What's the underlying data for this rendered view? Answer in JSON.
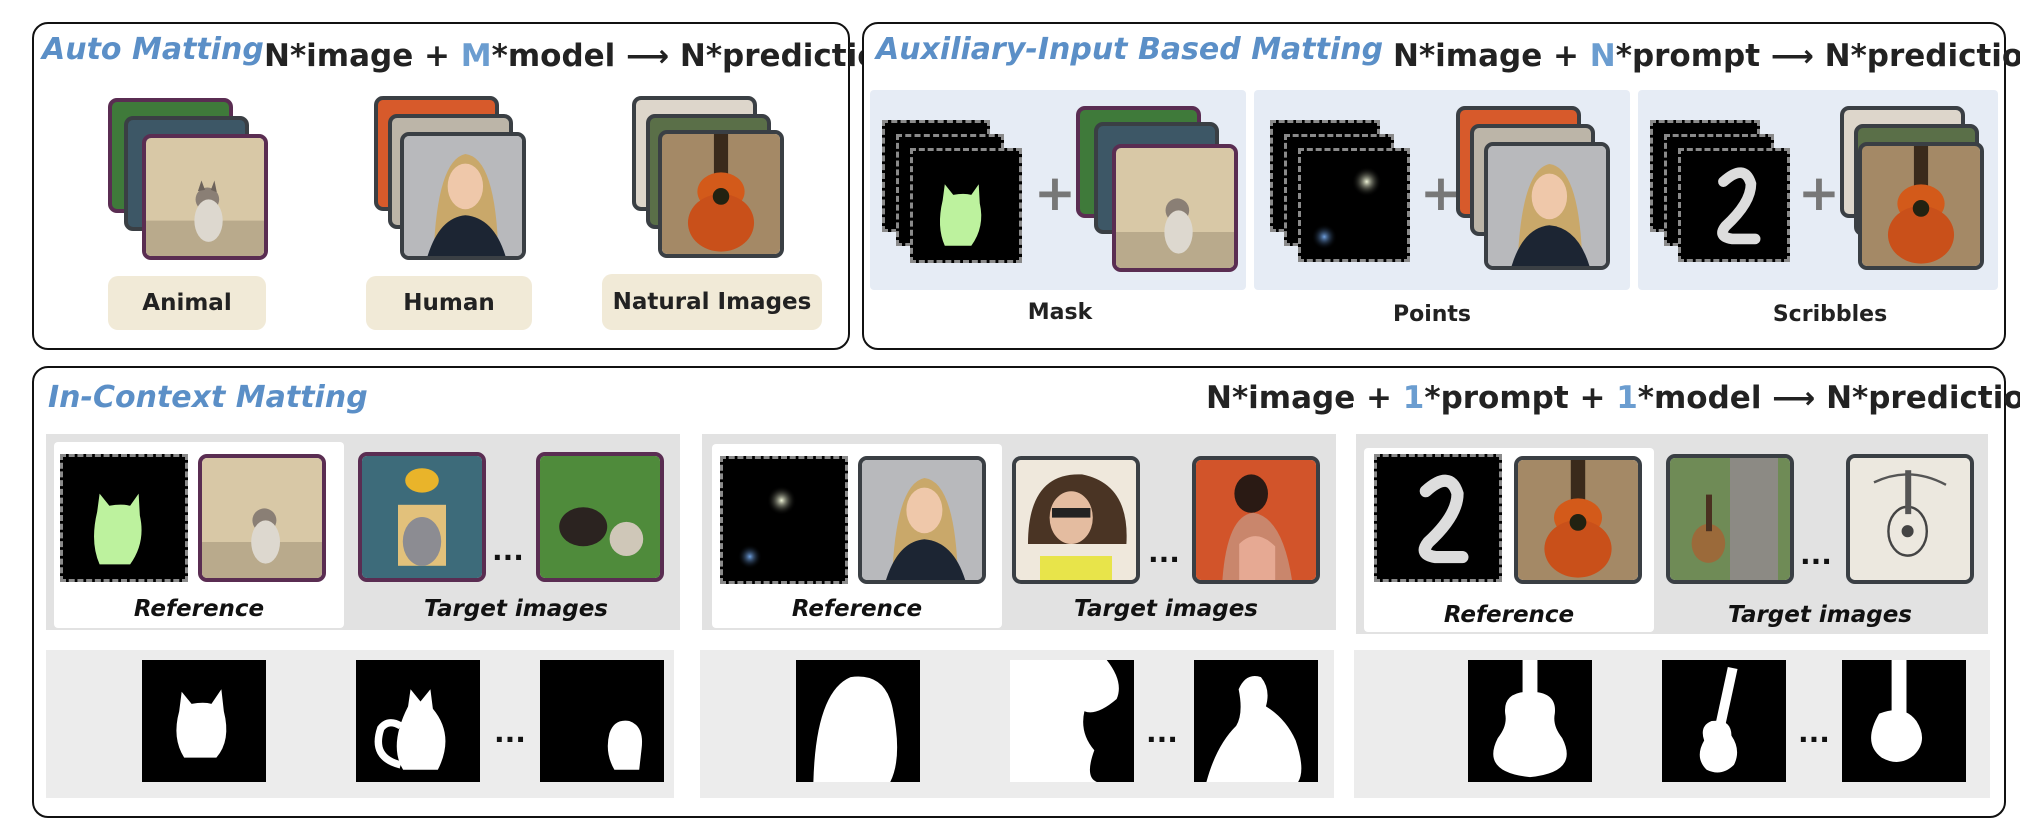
{
  "auto": {
    "title": "Auto Matting",
    "f1": "N*image + ",
    "f2": "M",
    "f3": "*model ",
    "f4": "N*predictions",
    "tags": [
      "Animal",
      "Human",
      "Natural Images"
    ]
  },
  "aux": {
    "title": "Auxiliary-Input Based Matting",
    "f1": "N*image + ",
    "f2": "N",
    "f3": "*prompt ",
    "f4": "N*predictions",
    "labels": [
      "Mask",
      "Points",
      "Scribbles"
    ]
  },
  "icm": {
    "title": "In-Context Matting",
    "f1": "N*image + ",
    "f2": "1",
    "f3": "*prompt + ",
    "f4": "1",
    "f5": "*model ",
    "f6": "N*predictions",
    "reference": "Reference",
    "target": "Target images",
    "ellipsis": "..."
  },
  "arrow": "⟶",
  "colors": {
    "accent": "#5b8fc7",
    "tag_bg": "#f1ead7",
    "group_bg": "#e5e5e5",
    "aux_bg": "#e6ecf5"
  }
}
